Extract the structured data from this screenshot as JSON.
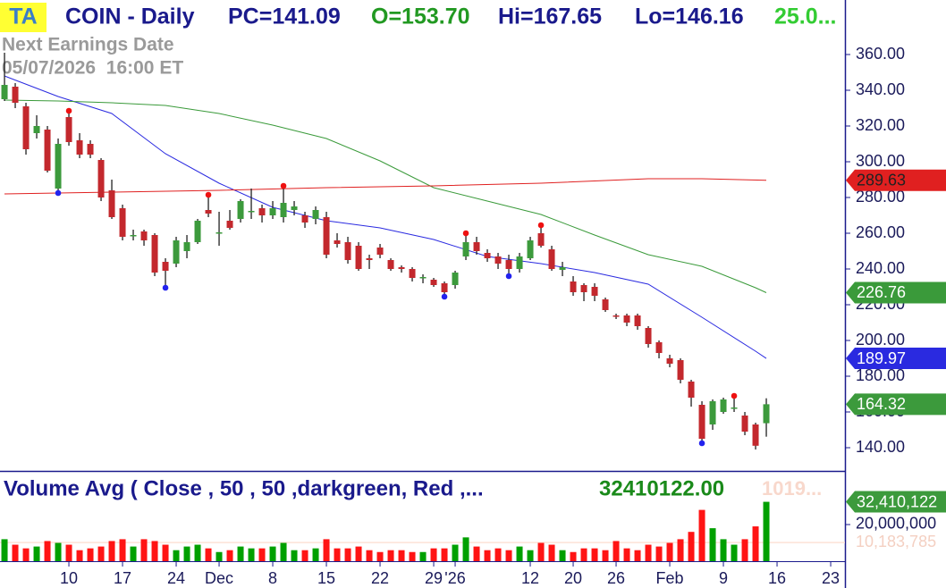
{
  "header": {
    "badge": "TA",
    "symbol": "COIN - Daily",
    "pc": "PC=141.09",
    "open": "O=153.70",
    "high": "Hi=167.65",
    "low": "Lo=146.16",
    "change": "25.0..."
  },
  "earnings": {
    "label": "Next Earnings Date",
    "datetime": "05/07/2026  16:00 ET"
  },
  "chart_data": [
    {
      "type": "candlestick",
      "open": [
        335,
        342,
        331,
        316,
        318,
        285,
        325,
        312,
        310,
        301,
        284,
        274,
        258.5,
        261,
        259,
        244,
        243,
        250,
        255,
        273,
        260,
        267,
        268,
        272,
        274,
        270,
        269,
        273,
        270,
        268,
        269,
        256,
        255,
        253,
        246,
        252,
        245,
        241,
        240,
        235,
        234,
        232,
        231,
        247,
        255,
        249,
        247,
        245,
        240,
        246,
        260,
        251,
        239.5,
        233,
        231,
        230,
        223,
        214,
        214,
        214,
        207,
        199,
        190,
        189,
        177,
        164,
        153,
        160,
        162,
        158,
        153,
        153.7
      ],
      "high": [
        361,
        344,
        333,
        326,
        320,
        313,
        327,
        316,
        312,
        302,
        290,
        276,
        262,
        262,
        260,
        246,
        258,
        259,
        268,
        280,
        272,
        273,
        279,
        285,
        276,
        278,
        285,
        278,
        272,
        275,
        272,
        260,
        258,
        255,
        248,
        254,
        246,
        242,
        241,
        237,
        235,
        233,
        239,
        258.5,
        258,
        251,
        249,
        248,
        249,
        258,
        263,
        253,
        244,
        236,
        232,
        232,
        224,
        215,
        215,
        215,
        208,
        200,
        192,
        190,
        178,
        166,
        167,
        168,
        167.5,
        160,
        154,
        167.65
      ],
      "low": [
        334,
        330,
        304,
        313,
        294,
        284,
        309,
        302,
        302,
        278,
        268,
        256,
        256,
        253,
        236,
        231,
        241,
        246,
        254,
        269,
        253,
        262,
        266,
        268,
        266,
        268,
        266,
        270,
        263,
        265,
        246,
        252,
        243,
        239,
        240,
        246,
        239,
        238,
        233,
        232,
        230,
        226,
        229,
        245,
        248,
        244,
        240,
        237.5,
        238,
        245,
        252,
        239,
        236,
        225,
        222,
        222,
        216,
        212,
        208,
        206,
        196,
        190,
        185,
        176,
        163,
        144,
        150,
        159,
        160,
        147,
        139,
        146.16
      ],
      "close": [
        343,
        333,
        307,
        320,
        295,
        310,
        311,
        304,
        304,
        280,
        269,
        258,
        259,
        256,
        238,
        239,
        256,
        255,
        267,
        271,
        260.5,
        263,
        278,
        272.5,
        270,
        274,
        277,
        275,
        266,
        273,
        248,
        254,
        245,
        240,
        245,
        248,
        240,
        240,
        235,
        235.5,
        231,
        227,
        238,
        255,
        250,
        246,
        243,
        240,
        247,
        256,
        253,
        240,
        241,
        227,
        227,
        225,
        217,
        213.5,
        210,
        208,
        198,
        193,
        187,
        178,
        168,
        145,
        166,
        167,
        162.5,
        149,
        141.09,
        164.32
      ],
      "up_color": "#3c9a3c",
      "down_color": "#c3282d",
      "lines": [
        {
          "color": "#2a2ae0",
          "x": [
            0,
            5,
            10,
            15,
            20,
            25,
            30,
            35,
            40,
            45,
            50,
            55,
            60,
            65,
            70,
            71
          ],
          "values": [
            348,
            336.5,
            327,
            304.5,
            288,
            274.5,
            267,
            263,
            256.5,
            247,
            243,
            238,
            231.5,
            213,
            194,
            189.97
          ]
        },
        {
          "color": "#3a9a3a",
          "x": [
            0,
            5,
            10,
            15,
            20,
            25,
            30,
            35,
            40,
            45,
            50,
            55,
            60,
            65,
            70,
            71
          ],
          "values": [
            334.5,
            334,
            333,
            331.5,
            327,
            320.5,
            313,
            300.5,
            285.5,
            278,
            270.5,
            259,
            248,
            241.5,
            229.5,
            226.76
          ]
        },
        {
          "color": "#e02020",
          "x": [
            0,
            10,
            20,
            30,
            40,
            50,
            60,
            65,
            71
          ],
          "values": [
            282,
            283,
            284,
            285.5,
            286.5,
            288,
            290.5,
            290.5,
            289.63
          ]
        }
      ],
      "high_markers": [
        6,
        19,
        26,
        43,
        50,
        68
      ],
      "low_markers": [
        5,
        15,
        41,
        47,
        65
      ],
      "xlim": [
        -0.42,
        78.33
      ],
      "ylim": [
        127,
        371.5
      ],
      "yticks": [
        {
          "value": 140,
          "label": "140.00"
        },
        {
          "value": 160,
          "label": "160.00"
        },
        {
          "value": 180,
          "label": "180.00"
        },
        {
          "value": 200,
          "label": "200.00"
        },
        {
          "value": 220,
          "label": "220.00"
        },
        {
          "value": 240,
          "label": "240.00"
        },
        {
          "value": 260,
          "label": "260.00"
        },
        {
          "value": 280,
          "label": "280.00"
        },
        {
          "value": 300,
          "label": "300.00"
        },
        {
          "value": 320,
          "label": "320.00"
        },
        {
          "value": 340,
          "label": "340.00"
        },
        {
          "value": 360,
          "label": "360.00"
        }
      ],
      "xticks": [
        {
          "value": 6,
          "label": "10"
        },
        {
          "value": 11,
          "label": "17"
        },
        {
          "value": 16,
          "label": "24"
        },
        {
          "value": 20,
          "label": "Dec"
        },
        {
          "value": 25,
          "label": "8"
        },
        {
          "value": 30,
          "label": "15"
        },
        {
          "value": 35,
          "label": "22"
        },
        {
          "value": 40,
          "label": "29"
        },
        {
          "value": 42,
          "label": "'26"
        },
        {
          "value": 49,
          "label": "12"
        },
        {
          "value": 53,
          "label": "20"
        },
        {
          "value": 57,
          "label": "26"
        },
        {
          "value": 62,
          "label": "Feb"
        },
        {
          "value": 67,
          "label": "9"
        },
        {
          "value": 72,
          "label": "16"
        },
        {
          "value": 77,
          "label": "23"
        }
      ]
    },
    {
      "type": "bar",
      "title": "Volume Avg ( Close , 50 , 50 ,darkgreen, Red ,...",
      "readout": "32410122.00",
      "readout_faint": "1019...",
      "values": [
        12000000,
        9000000,
        7000000,
        8000000,
        11000000,
        10000000,
        9000000,
        6000000,
        7000000,
        8000000,
        11000000,
        12000000,
        8000000,
        12000000,
        11000000,
        9000000,
        6000000,
        8000000,
        9000000,
        7000000,
        5000000,
        6000000,
        8000000,
        7000000,
        7000000,
        8000000,
        10000000,
        6000000,
        6000000,
        7000000,
        12000000,
        7000000,
        7000000,
        8000000,
        6000000,
        5000000,
        6000000,
        6000000,
        5000000,
        5000000,
        7000000,
        7000000,
        9000000,
        13000000,
        8000000,
        6000000,
        7000000,
        6000000,
        8000000,
        6000000,
        10000000,
        9000000,
        6000000,
        5000000,
        7000000,
        7000000,
        6000000,
        11000000,
        7000000,
        6000000,
        9000000,
        8000000,
        10000000,
        12000000,
        16000000,
        28000000,
        18000000,
        12000000,
        9000000,
        12000000,
        19000000,
        32410122
      ],
      "last_label": "32,410,122",
      "up_color": "#00a000",
      "down_color": "#ff1414",
      "average": {
        "value": 10183785,
        "label": "10,183,785"
      },
      "ylim": [
        0,
        48780000
      ],
      "yticks": [
        {
          "value": 20000000,
          "label": "20,000,000"
        }
      ]
    }
  ]
}
